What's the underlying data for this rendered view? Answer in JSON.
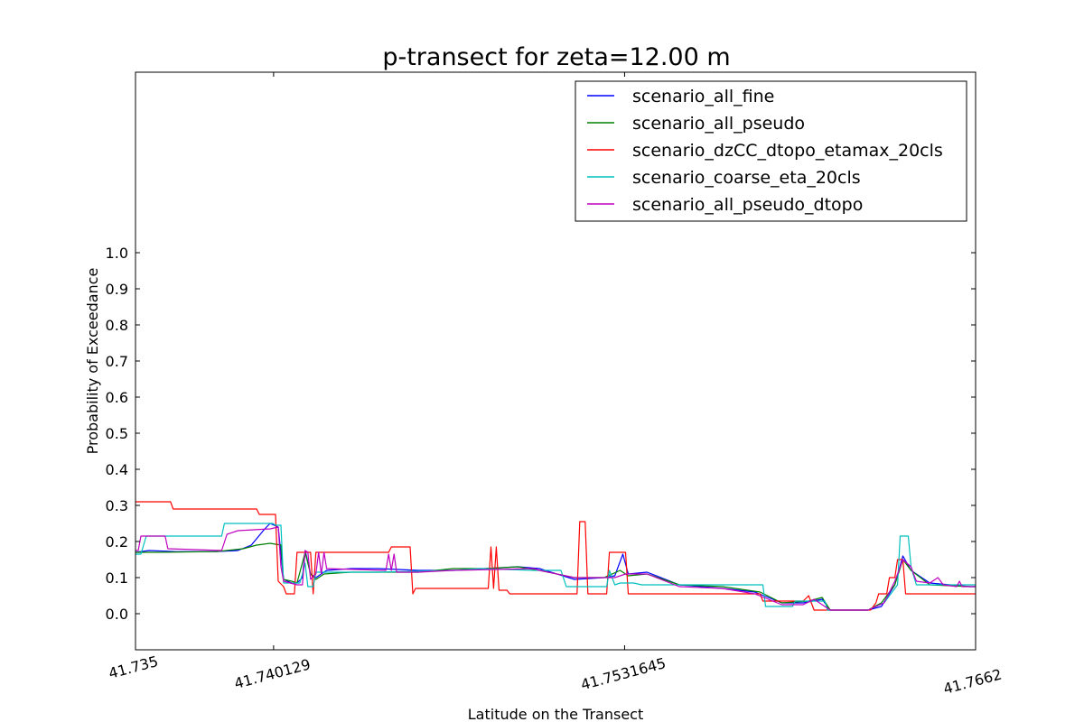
{
  "chart_data": {
    "type": "line",
    "title": "p-transect for zeta=12.00 m",
    "xlabel": "Latitude on the Transect",
    "ylabel": "Probability of Exceedance",
    "xlim": [
      41.735,
      41.7662
    ],
    "ylim": [
      -0.1,
      1.5
    ],
    "x_ticks": [
      41.735,
      41.740129,
      41.7531645,
      41.7662
    ],
    "x_tick_labels": [
      "41.735",
      "41.740129",
      "41.7531645",
      "41.7662"
    ],
    "y_ticks": [
      0.0,
      0.1,
      0.2,
      0.3,
      0.4,
      0.5,
      0.6,
      0.7,
      0.8,
      0.9,
      1.0
    ],
    "y_tick_labels": [
      "0.0",
      "0.1",
      "0.2",
      "0.3",
      "0.4",
      "0.5",
      "0.6",
      "0.7",
      "0.8",
      "0.9",
      "1.0"
    ],
    "grid": false,
    "legend_position": "top-right",
    "series": [
      {
        "name": "scenario_all_fine",
        "color": "#0000ff",
        "points": [
          [
            41.735,
            0.17
          ],
          [
            41.7355,
            0.175
          ],
          [
            41.7365,
            0.172
          ],
          [
            41.738,
            0.172
          ],
          [
            41.7388,
            0.175
          ],
          [
            41.7393,
            0.19
          ],
          [
            41.7398,
            0.235
          ],
          [
            41.74,
            0.25
          ],
          [
            41.7403,
            0.24
          ],
          [
            41.7405,
            0.095
          ],
          [
            41.7408,
            0.085
          ],
          [
            41.741,
            0.085
          ],
          [
            41.7412,
            0.1
          ],
          [
            41.7413,
            0.175
          ],
          [
            41.7415,
            0.11
          ],
          [
            41.7417,
            0.1
          ],
          [
            41.7421,
            0.12
          ],
          [
            41.743,
            0.125
          ],
          [
            41.744,
            0.125
          ],
          [
            41.7455,
            0.12
          ],
          [
            41.7468,
            0.12
          ],
          [
            41.748,
            0.125
          ],
          [
            41.7492,
            0.13
          ],
          [
            41.75,
            0.125
          ],
          [
            41.7513,
            0.095
          ],
          [
            41.7524,
            0.1
          ],
          [
            41.7528,
            0.105
          ],
          [
            41.7531,
            0.165
          ],
          [
            41.7533,
            0.11
          ],
          [
            41.754,
            0.115
          ],
          [
            41.7552,
            0.08
          ],
          [
            41.7568,
            0.07
          ],
          [
            41.758,
            0.06
          ],
          [
            41.759,
            0.03
          ],
          [
            41.7598,
            0.03
          ],
          [
            41.7605,
            0.04
          ],
          [
            41.7608,
            0.01
          ],
          [
            41.7622,
            0.01
          ],
          [
            41.7627,
            0.02
          ],
          [
            41.7632,
            0.08
          ],
          [
            41.7635,
            0.16
          ],
          [
            41.7638,
            0.12
          ],
          [
            41.7645,
            0.085
          ],
          [
            41.766,
            0.075
          ],
          [
            41.7662,
            0.075
          ]
        ]
      },
      {
        "name": "scenario_all_pseudo",
        "color": "#008000",
        "points": [
          [
            41.735,
            0.17
          ],
          [
            41.7358,
            0.17
          ],
          [
            41.738,
            0.172
          ],
          [
            41.739,
            0.18
          ],
          [
            41.7395,
            0.19
          ],
          [
            41.74,
            0.195
          ],
          [
            41.7404,
            0.19
          ],
          [
            41.7405,
            0.095
          ],
          [
            41.7408,
            0.09
          ],
          [
            41.741,
            0.085
          ],
          [
            41.7413,
            0.17
          ],
          [
            41.7415,
            0.11
          ],
          [
            41.7417,
            0.095
          ],
          [
            41.742,
            0.11
          ],
          [
            41.743,
            0.115
          ],
          [
            41.7455,
            0.115
          ],
          [
            41.7468,
            0.125
          ],
          [
            41.748,
            0.125
          ],
          [
            41.7492,
            0.13
          ],
          [
            41.75,
            0.12
          ],
          [
            41.7513,
            0.1
          ],
          [
            41.7524,
            0.1
          ],
          [
            41.753,
            0.12
          ],
          [
            41.7533,
            0.105
          ],
          [
            41.754,
            0.11
          ],
          [
            41.7552,
            0.08
          ],
          [
            41.7568,
            0.075
          ],
          [
            41.7582,
            0.06
          ],
          [
            41.759,
            0.03
          ],
          [
            41.76,
            0.035
          ],
          [
            41.7605,
            0.045
          ],
          [
            41.7608,
            0.01
          ],
          [
            41.7622,
            0.01
          ],
          [
            41.7627,
            0.03
          ],
          [
            41.7632,
            0.08
          ],
          [
            41.7635,
            0.15
          ],
          [
            41.7638,
            0.12
          ],
          [
            41.7645,
            0.08
          ],
          [
            41.766,
            0.075
          ],
          [
            41.7662,
            0.075
          ]
        ]
      },
      {
        "name": "scenario_dzCC_dtopo_etamax_20cls",
        "color": "#ff0000",
        "points": [
          [
            41.735,
            0.31
          ],
          [
            41.7363,
            0.31
          ],
          [
            41.7364,
            0.29
          ],
          [
            41.7395,
            0.29
          ],
          [
            41.7396,
            0.275
          ],
          [
            41.7402,
            0.275
          ],
          [
            41.7403,
            0.09
          ],
          [
            41.7405,
            0.075
          ],
          [
            41.7406,
            0.055
          ],
          [
            41.7409,
            0.055
          ],
          [
            41.741,
            0.17
          ],
          [
            41.7415,
            0.17
          ],
          [
            41.7416,
            0.055
          ],
          [
            41.7417,
            0.17
          ],
          [
            41.7444,
            0.17
          ],
          [
            41.7445,
            0.185
          ],
          [
            41.7452,
            0.185
          ],
          [
            41.7453,
            0.055
          ],
          [
            41.7454,
            0.07
          ],
          [
            41.7481,
            0.07
          ],
          [
            41.7482,
            0.185
          ],
          [
            41.7483,
            0.07
          ],
          [
            41.7484,
            0.185
          ],
          [
            41.7485,
            0.065
          ],
          [
            41.7488,
            0.065
          ],
          [
            41.7489,
            0.055
          ],
          [
            41.7514,
            0.055
          ],
          [
            41.7515,
            0.255
          ],
          [
            41.7517,
            0.255
          ],
          [
            41.7518,
            0.055
          ],
          [
            41.7525,
            0.055
          ],
          [
            41.7526,
            0.17
          ],
          [
            41.7532,
            0.17
          ],
          [
            41.7533,
            0.055
          ],
          [
            41.7582,
            0.055
          ],
          [
            41.7583,
            0.035
          ],
          [
            41.7598,
            0.035
          ],
          [
            41.76,
            0.05
          ],
          [
            41.7602,
            0.01
          ],
          [
            41.7623,
            0.01
          ],
          [
            41.7625,
            0.03
          ],
          [
            41.7626,
            0.055
          ],
          [
            41.7629,
            0.055
          ],
          [
            41.763,
            0.1
          ],
          [
            41.7632,
            0.1
          ],
          [
            41.7633,
            0.15
          ],
          [
            41.7635,
            0.15
          ],
          [
            41.7636,
            0.055
          ],
          [
            41.7662,
            0.055
          ]
        ]
      },
      {
        "name": "scenario_coarse_eta_20cls",
        "color": "#00bfbf",
        "points": [
          [
            41.735,
            0.165
          ],
          [
            41.7352,
            0.165
          ],
          [
            41.7354,
            0.215
          ],
          [
            41.7382,
            0.215
          ],
          [
            41.7383,
            0.25
          ],
          [
            41.7401,
            0.25
          ],
          [
            41.7402,
            0.245
          ],
          [
            41.7404,
            0.245
          ],
          [
            41.7405,
            0.085
          ],
          [
            41.7411,
            0.085
          ],
          [
            41.7412,
            0.11
          ],
          [
            41.7413,
            0.14
          ],
          [
            41.7414,
            0.075
          ],
          [
            41.7416,
            0.075
          ],
          [
            41.7417,
            0.115
          ],
          [
            41.742,
            0.115
          ],
          [
            41.744,
            0.115
          ],
          [
            41.7468,
            0.12
          ],
          [
            41.7478,
            0.125
          ],
          [
            41.7498,
            0.12
          ],
          [
            41.7501,
            0.12
          ],
          [
            41.7508,
            0.12
          ],
          [
            41.751,
            0.075
          ],
          [
            41.7525,
            0.075
          ],
          [
            41.7526,
            0.12
          ],
          [
            41.7528,
            0.08
          ],
          [
            41.753,
            0.085
          ],
          [
            41.7535,
            0.085
          ],
          [
            41.7538,
            0.08
          ],
          [
            41.755,
            0.08
          ],
          [
            41.7562,
            0.08
          ],
          [
            41.7583,
            0.08
          ],
          [
            41.7584,
            0.02
          ],
          [
            41.7594,
            0.02
          ],
          [
            41.7595,
            0.035
          ],
          [
            41.7606,
            0.035
          ],
          [
            41.7607,
            0.01
          ],
          [
            41.7622,
            0.01
          ],
          [
            41.7628,
            0.03
          ],
          [
            41.7633,
            0.08
          ],
          [
            41.7634,
            0.215
          ],
          [
            41.7637,
            0.215
          ],
          [
            41.7638,
            0.13
          ],
          [
            41.764,
            0.08
          ],
          [
            41.766,
            0.08
          ],
          [
            41.7662,
            0.08
          ]
        ]
      },
      {
        "name": "scenario_all_pseudo_dtopo",
        "color": "#bf00bf",
        "points": [
          [
            41.735,
            0.175
          ],
          [
            41.7351,
            0.175
          ],
          [
            41.7352,
            0.215
          ],
          [
            41.7361,
            0.215
          ],
          [
            41.7362,
            0.18
          ],
          [
            41.7382,
            0.175
          ],
          [
            41.7384,
            0.22
          ],
          [
            41.7388,
            0.23
          ],
          [
            41.74,
            0.235
          ],
          [
            41.7403,
            0.24
          ],
          [
            41.7404,
            0.13
          ],
          [
            41.7405,
            0.09
          ],
          [
            41.741,
            0.08
          ],
          [
            41.7412,
            0.08
          ],
          [
            41.7413,
            0.175
          ],
          [
            41.7414,
            0.17
          ],
          [
            41.7415,
            0.095
          ],
          [
            41.7417,
            0.11
          ],
          [
            41.7418,
            0.17
          ],
          [
            41.7419,
            0.11
          ],
          [
            41.742,
            0.17
          ],
          [
            41.7421,
            0.125
          ],
          [
            41.7443,
            0.12
          ],
          [
            41.7444,
            0.165
          ],
          [
            41.7445,
            0.12
          ],
          [
            41.7446,
            0.165
          ],
          [
            41.7447,
            0.115
          ],
          [
            41.7455,
            0.115
          ],
          [
            41.7468,
            0.12
          ],
          [
            41.7498,
            0.125
          ],
          [
            41.75,
            0.12
          ],
          [
            41.7513,
            0.1
          ],
          [
            41.7524,
            0.1
          ],
          [
            41.7528,
            0.1
          ],
          [
            41.7532,
            0.11
          ],
          [
            41.754,
            0.11
          ],
          [
            41.7552,
            0.075
          ],
          [
            41.7568,
            0.07
          ],
          [
            41.758,
            0.055
          ],
          [
            41.759,
            0.025
          ],
          [
            41.7598,
            0.025
          ],
          [
            41.7602,
            0.04
          ],
          [
            41.7608,
            0.01
          ],
          [
            41.7622,
            0.01
          ],
          [
            41.7628,
            0.03
          ],
          [
            41.7632,
            0.09
          ],
          [
            41.7635,
            0.15
          ],
          [
            41.7638,
            0.13
          ],
          [
            41.764,
            0.09
          ],
          [
            41.7645,
            0.085
          ],
          [
            41.7648,
            0.1
          ],
          [
            41.765,
            0.08
          ],
          [
            41.7655,
            0.075
          ],
          [
            41.7656,
            0.09
          ],
          [
            41.7657,
            0.075
          ],
          [
            41.766,
            0.075
          ],
          [
            41.7662,
            0.075
          ]
        ]
      }
    ]
  }
}
